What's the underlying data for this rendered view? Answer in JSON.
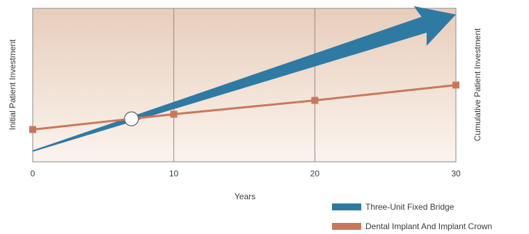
{
  "chart_data": {
    "type": "line",
    "title": "",
    "xlabel": "Years",
    "ylabel_left": "Initial Patient Investment",
    "ylabel_right": "Cumulative Patient Investment",
    "x_ticks": [
      0,
      10,
      20,
      30
    ],
    "xlim": [
      0,
      30
    ],
    "ylim": [
      0,
      100
    ],
    "grid": "vertical",
    "legend_position": "bottom-right",
    "series": [
      {
        "name": "Three-Unit Fixed Bridge",
        "color": "#2f7aa3",
        "style": "widening-arrow",
        "x": [
          0,
          30
        ],
        "y": [
          7,
          96
        ]
      },
      {
        "name": "Dental Implant And Implant Crown",
        "color": "#c9775a",
        "marker": "square",
        "x": [
          0,
          10,
          20,
          30
        ],
        "y": [
          21,
          31,
          40,
          50
        ]
      }
    ],
    "annotations": [
      {
        "type": "break-even-point",
        "x": 7,
        "y": 28
      }
    ]
  }
}
